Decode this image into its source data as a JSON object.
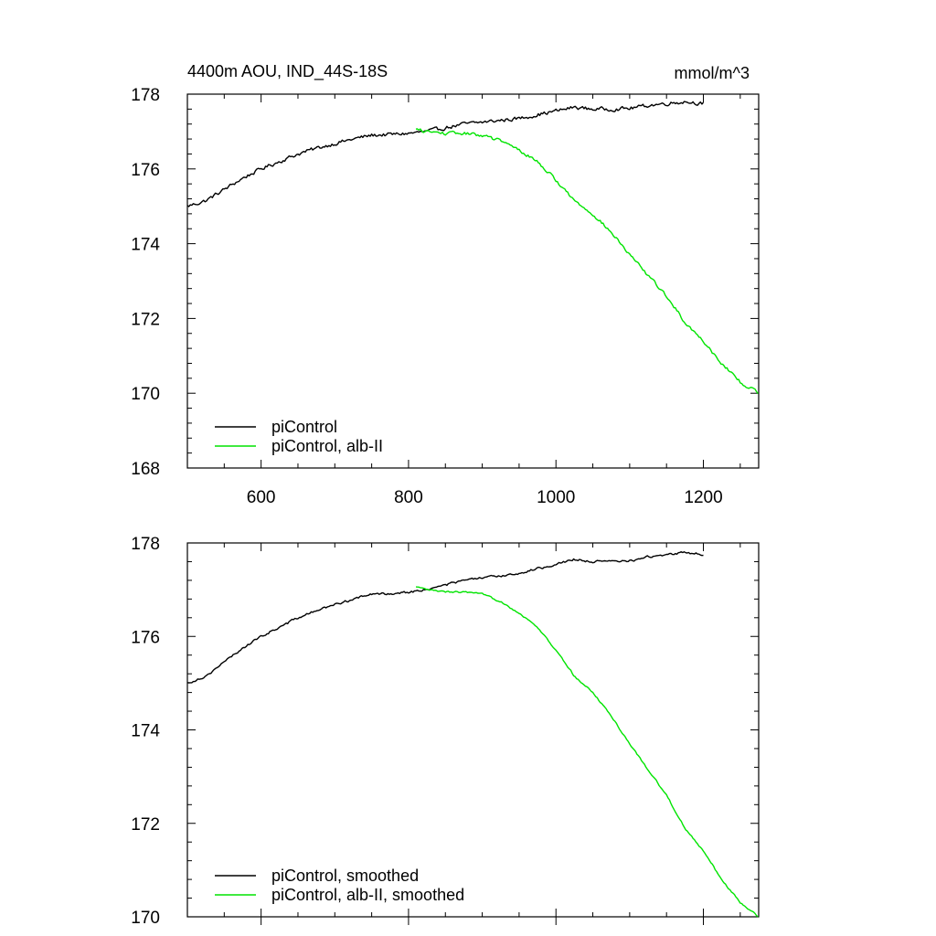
{
  "figure": {
    "title": "4400m AOU, IND_44S-18S",
    "units": "mmol/m^3"
  },
  "colors": {
    "black": "#000000",
    "green": "#00e400"
  },
  "chart_data": [
    {
      "type": "line",
      "title": "4400m AOU, IND_44S-18S",
      "units": "mmol/m^3",
      "xlabel": "",
      "ylabel": "",
      "xlim": [
        500,
        1275
      ],
      "ylim": [
        168,
        178
      ],
      "xticks": [
        600,
        800,
        1000,
        1200
      ],
      "yticks": [
        168,
        170,
        172,
        174,
        176,
        178
      ],
      "xtick_labels": [
        "600",
        "800",
        "1000",
        "1200"
      ],
      "ytick_labels": [
        "168",
        "170",
        "172",
        "174",
        "176",
        "178"
      ],
      "legend_location": "bottom-left",
      "series": [
        {
          "name": "piControl",
          "color": "#000000",
          "x": [
            500,
            525,
            550,
            575,
            600,
            625,
            650,
            675,
            700,
            725,
            750,
            775,
            800,
            825,
            850,
            875,
            900,
            925,
            950,
            975,
            1000,
            1025,
            1050,
            1075,
            1100,
            1125,
            1150,
            1175,
            1200
          ],
          "y": [
            175.0,
            175.15,
            175.45,
            175.75,
            176.0,
            176.2,
            176.4,
            176.55,
            176.68,
            176.8,
            176.9,
            176.92,
            176.95,
            177.0,
            177.1,
            177.2,
            177.25,
            177.3,
            177.35,
            177.45,
            177.55,
            177.65,
            177.6,
            177.6,
            177.62,
            177.7,
            177.75,
            177.8,
            177.75
          ],
          "noise": 0.08
        },
        {
          "name": "piControl, alb-II",
          "color": "#00e400",
          "x": [
            810,
            825,
            850,
            875,
            900,
            925,
            950,
            975,
            1000,
            1025,
            1050,
            1075,
            1100,
            1125,
            1150,
            1175,
            1200,
            1225,
            1250,
            1275
          ],
          "y": [
            177.05,
            177.0,
            176.95,
            176.95,
            176.9,
            176.75,
            176.5,
            176.2,
            175.7,
            175.15,
            174.8,
            174.3,
            173.7,
            173.15,
            172.6,
            171.9,
            171.4,
            170.8,
            170.3,
            170.0
          ],
          "noise": 0.07
        }
      ]
    },
    {
      "type": "line",
      "title": "",
      "xlabel": "",
      "ylabel": "",
      "xlim": [
        500,
        1275
      ],
      "ylim": [
        170,
        178
      ],
      "xticks": [
        600,
        800,
        1000,
        1200
      ],
      "yticks": [
        170,
        172,
        174,
        176,
        178
      ],
      "xtick_labels": [],
      "ytick_labels": [
        "170",
        "172",
        "174",
        "176",
        "178"
      ],
      "legend_location": "bottom-left",
      "series": [
        {
          "name": "piControl, smoothed",
          "color": "#000000",
          "x": [
            500,
            525,
            550,
            575,
            600,
            625,
            650,
            675,
            700,
            725,
            750,
            775,
            800,
            825,
            850,
            875,
            900,
            925,
            950,
            975,
            1000,
            1025,
            1050,
            1075,
            1100,
            1125,
            1150,
            1175,
            1200
          ],
          "y": [
            175.0,
            175.15,
            175.45,
            175.75,
            176.0,
            176.2,
            176.4,
            176.55,
            176.68,
            176.8,
            176.9,
            176.92,
            176.95,
            177.0,
            177.1,
            177.2,
            177.25,
            177.3,
            177.35,
            177.45,
            177.55,
            177.65,
            177.6,
            177.6,
            177.62,
            177.7,
            177.75,
            177.8,
            177.75
          ],
          "noise": 0.04
        },
        {
          "name": "piControl, alb-II, smoothed",
          "color": "#00e400",
          "x": [
            810,
            825,
            850,
            875,
            900,
            925,
            950,
            975,
            1000,
            1025,
            1050,
            1075,
            1100,
            1125,
            1150,
            1175,
            1200,
            1225,
            1250,
            1275
          ],
          "y": [
            177.05,
            177.0,
            176.95,
            176.95,
            176.9,
            176.75,
            176.5,
            176.2,
            175.7,
            175.15,
            174.8,
            174.3,
            173.7,
            173.15,
            172.6,
            171.9,
            171.4,
            170.8,
            170.3,
            170.0
          ],
          "noise": 0.03
        }
      ]
    }
  ]
}
